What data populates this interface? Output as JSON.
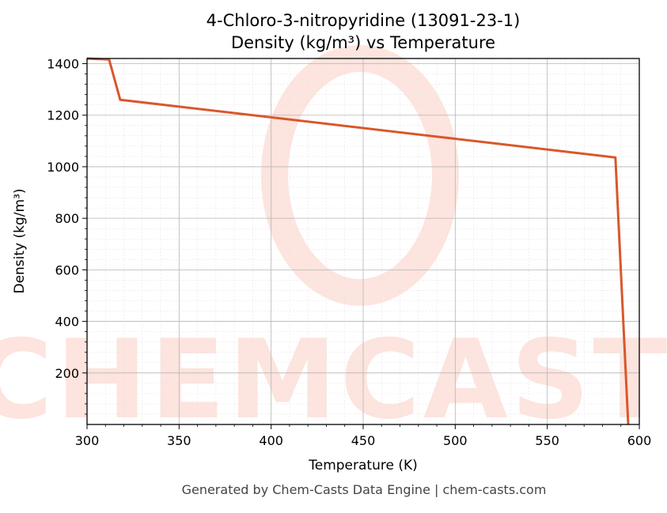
{
  "chart_data": {
    "type": "line",
    "title_lines": [
      "4-Chloro-3-nitropyridine (13091-23-1)",
      "Density (kg/m³) vs Temperature"
    ],
    "xlabel": "Temperature (K)",
    "ylabel": "Density (kg/m³)",
    "xlim": [
      300,
      600
    ],
    "ylim": [
      0,
      1420
    ],
    "x_ticks": [
      300,
      350,
      400,
      450,
      500,
      550,
      600
    ],
    "y_ticks": [
      200,
      400,
      600,
      800,
      1000,
      1200,
      1400
    ],
    "grid": true,
    "series": [
      {
        "color": "#d9572b",
        "x": [
          300,
          312,
          318,
          587,
          594
        ],
        "y": [
          1420,
          1416,
          1260,
          1036,
          0
        ]
      }
    ]
  },
  "watermark": {
    "text": "CHEMCASTS",
    "color": "#fde4de"
  },
  "footer": "Generated by Chem-Casts Data Engine | chem-casts.com"
}
